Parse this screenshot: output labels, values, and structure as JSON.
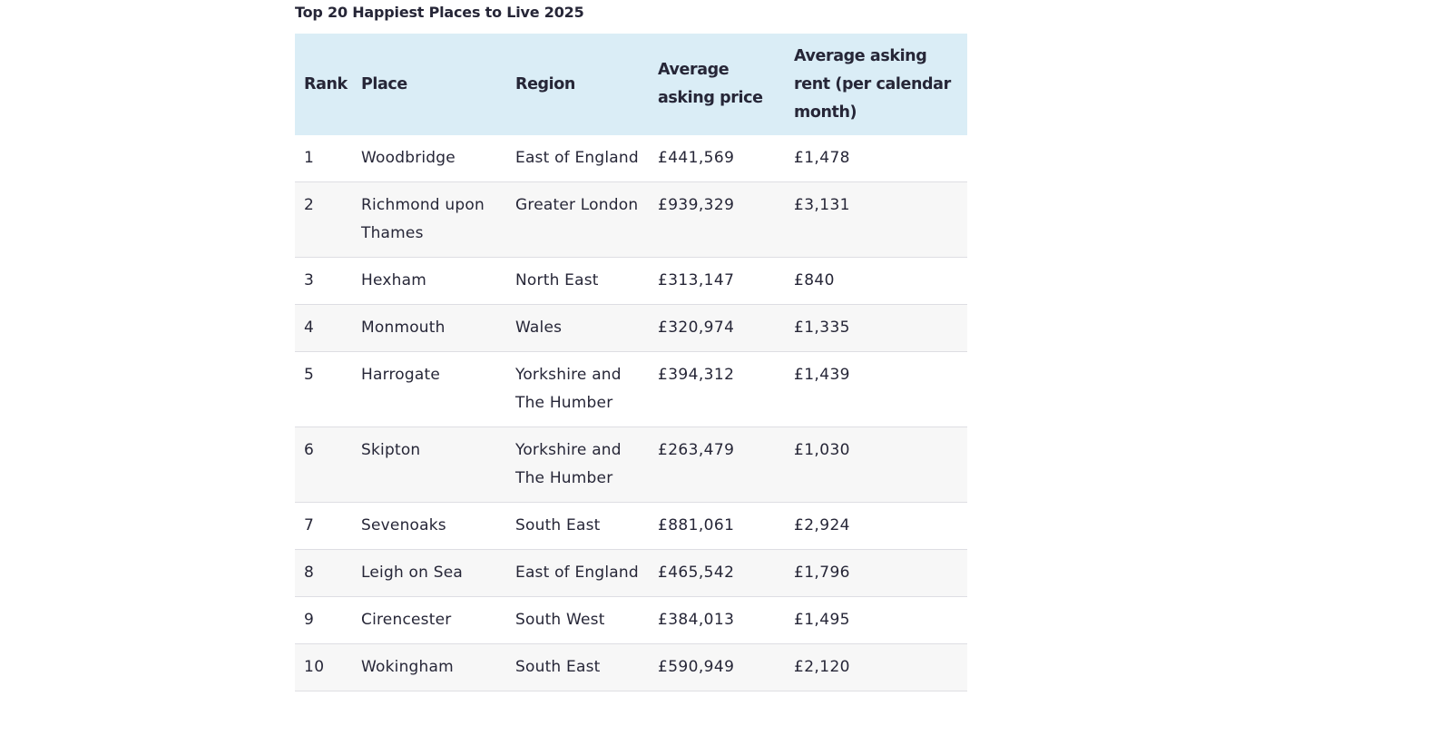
{
  "title": "Top 20 Happiest Places to Live 2025",
  "columns": {
    "rank": "Rank",
    "place": "Place",
    "region": "Region",
    "price": "Average asking price",
    "rent": "Average asking rent (per calendar month)"
  },
  "rows": [
    {
      "rank": "1",
      "place": "Woodbridge",
      "region": "East of England",
      "price": "£441,569",
      "rent": "£1,478"
    },
    {
      "rank": "2",
      "place": "Richmond upon Thames",
      "region": "Greater London",
      "price": "£939,329",
      "rent": "£3,131"
    },
    {
      "rank": "3",
      "place": "Hexham",
      "region": "North East",
      "price": "£313,147",
      "rent": "£840"
    },
    {
      "rank": "4",
      "place": "Monmouth",
      "region": "Wales",
      "price": "£320,974",
      "rent": "£1,335"
    },
    {
      "rank": "5",
      "place": "Harrogate",
      "region": "Yorkshire and The Humber",
      "price": "£394,312",
      "rent": "£1,439"
    },
    {
      "rank": "6",
      "place": "Skipton",
      "region": "Yorkshire and The Humber",
      "price": "£263,479",
      "rent": "£1,030"
    },
    {
      "rank": "7",
      "place": "Sevenoaks",
      "region": "South East",
      "price": "£881,061",
      "rent": "£2,924"
    },
    {
      "rank": "8",
      "place": "Leigh on Sea",
      "region": "East of England",
      "price": "£465,542",
      "rent": "£1,796"
    },
    {
      "rank": "9",
      "place": "Cirencester",
      "region": "South West",
      "price": "£384,013",
      "rent": "£1,495"
    },
    {
      "rank": "10",
      "place": "Wokingham",
      "region": "South East",
      "price": "£590,949",
      "rent": "£2,120"
    }
  ],
  "colors": {
    "header_background": "#daedf6",
    "row_alt_background": "#f7f7f7",
    "row_border": "#dedee3",
    "text": "#262637"
  }
}
